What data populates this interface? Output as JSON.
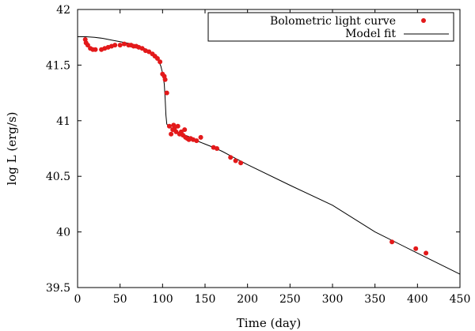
{
  "chart_data": {
    "type": "scatter",
    "title": "",
    "xlabel": "Time (day)",
    "ylabel": "log L (erg/s)",
    "xlim": [
      0,
      450
    ],
    "ylim": [
      39.5,
      42
    ],
    "xticks": [
      0,
      50,
      100,
      150,
      200,
      250,
      300,
      350,
      400,
      450
    ],
    "yticks": [
      39.5,
      40,
      40.5,
      41,
      41.5,
      42
    ],
    "legend_position": "top-right",
    "series": [
      {
        "name": "Bolometric light curve",
        "kind": "scatter",
        "color": "#e3191a",
        "points": [
          [
            9,
            41.73
          ],
          [
            10,
            41.7
          ],
          [
            12,
            41.68
          ],
          [
            15,
            41.65
          ],
          [
            18,
            41.64
          ],
          [
            21,
            41.64
          ],
          [
            28,
            41.64
          ],
          [
            32,
            41.65
          ],
          [
            36,
            41.66
          ],
          [
            40,
            41.67
          ],
          [
            44,
            41.68
          ],
          [
            50,
            41.68
          ],
          [
            55,
            41.69
          ],
          [
            60,
            41.68
          ],
          [
            63,
            41.68
          ],
          [
            66,
            41.67
          ],
          [
            69,
            41.67
          ],
          [
            72,
            41.66
          ],
          [
            76,
            41.65
          ],
          [
            80,
            41.63
          ],
          [
            84,
            41.62
          ],
          [
            88,
            41.6
          ],
          [
            91,
            41.58
          ],
          [
            94,
            41.56
          ],
          [
            97,
            41.53
          ],
          [
            100,
            41.42
          ],
          [
            102,
            41.4
          ],
          [
            103,
            41.37
          ],
          [
            105,
            41.25
          ],
          [
            108,
            40.95
          ],
          [
            110,
            40.88
          ],
          [
            112,
            40.92
          ],
          [
            113,
            40.96
          ],
          [
            114,
            40.93
          ],
          [
            116,
            40.9
          ],
          [
            118,
            40.95
          ],
          [
            120,
            40.88
          ],
          [
            122,
            40.9
          ],
          [
            124,
            40.87
          ],
          [
            126,
            40.92
          ],
          [
            127,
            40.85
          ],
          [
            129,
            40.84
          ],
          [
            131,
            40.83
          ],
          [
            133,
            40.84
          ],
          [
            136,
            40.83
          ],
          [
            140,
            40.82
          ],
          [
            145,
            40.85
          ],
          [
            160,
            40.76
          ],
          [
            164,
            40.75
          ],
          [
            180,
            40.67
          ],
          [
            186,
            40.64
          ],
          [
            192,
            40.62
          ],
          [
            370,
            39.91
          ],
          [
            398,
            39.85
          ],
          [
            410,
            39.81
          ]
        ]
      },
      {
        "name": "Model fit",
        "kind": "line",
        "color": "#000000",
        "points": [
          [
            0,
            41.755
          ],
          [
            10,
            41.755
          ],
          [
            20,
            41.75
          ],
          [
            30,
            41.74
          ],
          [
            40,
            41.725
          ],
          [
            50,
            41.71
          ],
          [
            60,
            41.695
          ],
          [
            70,
            41.675
          ],
          [
            80,
            41.645
          ],
          [
            85,
            41.625
          ],
          [
            90,
            41.595
          ],
          [
            95,
            41.545
          ],
          [
            98,
            41.49
          ],
          [
            100,
            41.43
          ],
          [
            102,
            41.33
          ],
          [
            103,
            41.2
          ],
          [
            104,
            41.05
          ],
          [
            105,
            40.97
          ],
          [
            107,
            40.95
          ],
          [
            110,
            40.935
          ],
          [
            115,
            40.915
          ],
          [
            120,
            40.89
          ],
          [
            130,
            40.86
          ],
          [
            140,
            40.82
          ],
          [
            150,
            40.79
          ],
          [
            160,
            40.76
          ],
          [
            170,
            40.725
          ],
          [
            180,
            40.685
          ],
          [
            190,
            40.645
          ],
          [
            200,
            40.605
          ],
          [
            250,
            40.42
          ],
          [
            300,
            40.24
          ],
          [
            350,
            40.0
          ],
          [
            400,
            39.81
          ],
          [
            450,
            39.62
          ]
        ]
      }
    ]
  }
}
